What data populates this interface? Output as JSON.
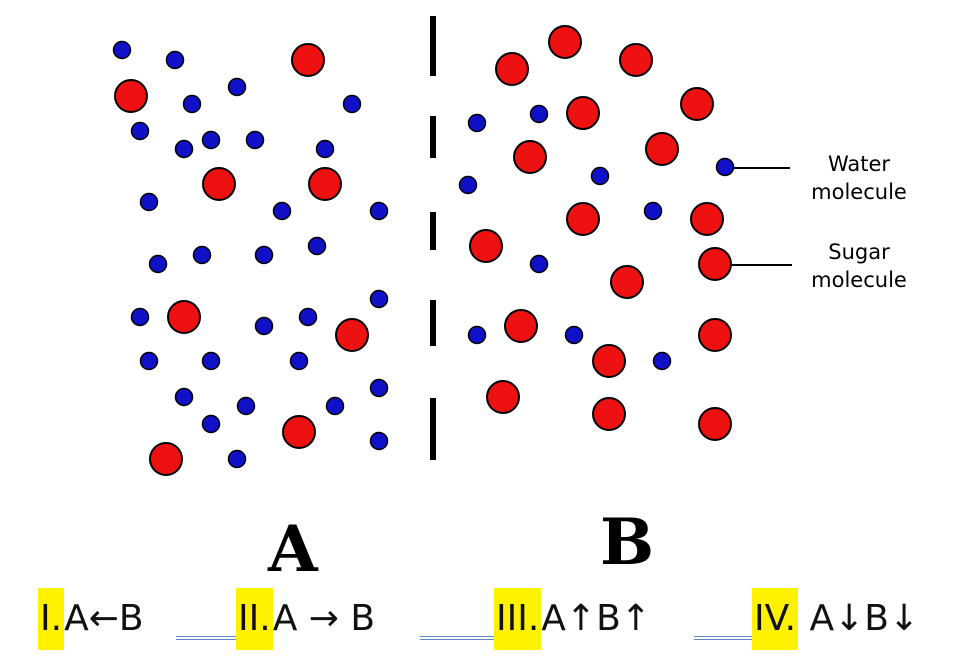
{
  "diagram": {
    "label_a": "A",
    "label_b": "B",
    "legend": {
      "water": [
        "Water",
        "molecule"
      ],
      "sugar": [
        "Sugar",
        "molecule"
      ]
    },
    "colors": {
      "water": "#1010c8",
      "sugar": "#ee1111",
      "outline": "#000000",
      "membrane": "#000000"
    }
  },
  "options": [
    {
      "num": "I.",
      "text": "A←B"
    },
    {
      "num": "II.",
      "text": "A → B"
    },
    {
      "num": "III.",
      "text": "A↑B↑"
    },
    {
      "num": "IV.",
      "text": " A↓B↓"
    }
  ]
}
